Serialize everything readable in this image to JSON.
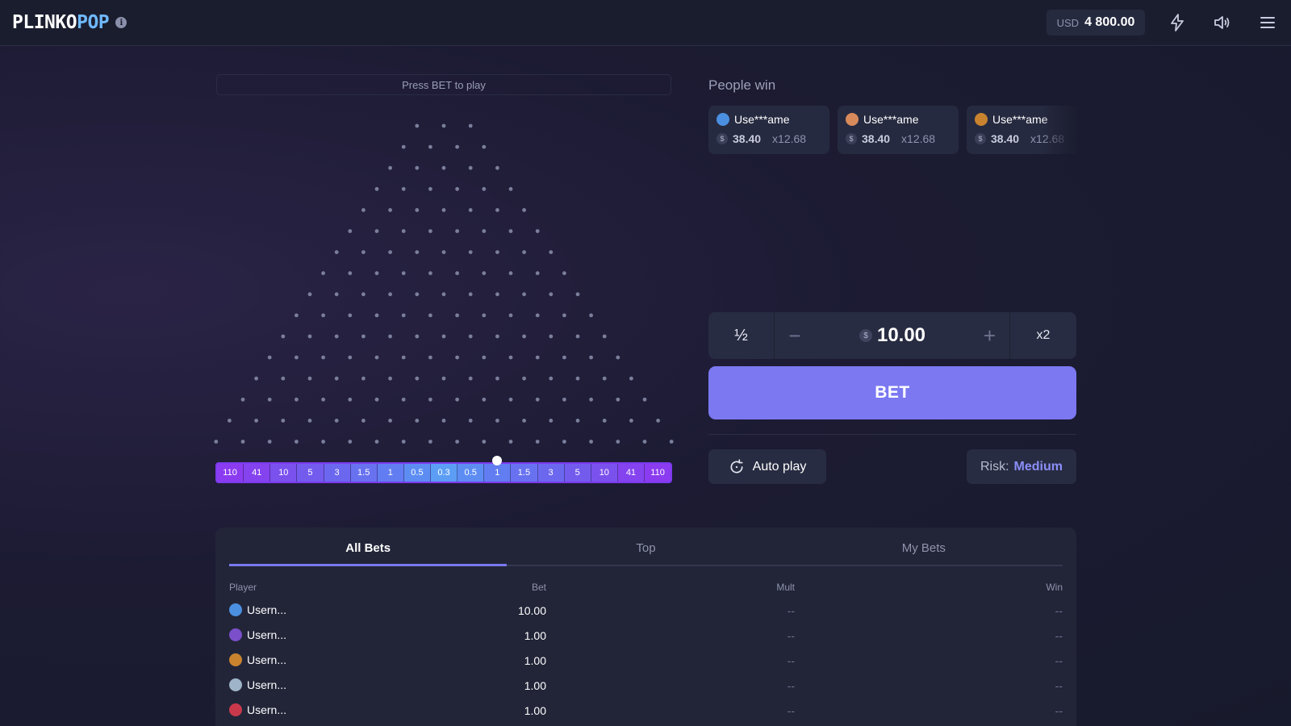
{
  "header": {
    "logo_part1": "PLINKO",
    "logo_part2": "POP",
    "currency": "USD",
    "balance": "4 800.00",
    "icons": [
      "info-icon",
      "lightning-icon",
      "sound-icon",
      "menu-icon"
    ]
  },
  "board": {
    "hint": "Press BET to play",
    "rows": 16,
    "multipliers": [
      "110",
      "41",
      "10",
      "5",
      "3",
      "1.5",
      "1",
      "0.5",
      "0.3",
      "0.5",
      "1",
      "1.5",
      "3",
      "5",
      "10",
      "41",
      "110"
    ],
    "slot_colors": [
      "#8b3cf0",
      "#8443ef",
      "#7b51ee",
      "#735bee",
      "#6c67ef",
      "#6872f0",
      "#617df1",
      "#5d8df3",
      "#5c9ef5",
      "#5d8df3",
      "#617df1",
      "#6872f0",
      "#6c67ef",
      "#735bee",
      "#7b51ee",
      "#8443ef",
      "#8b3cf0"
    ],
    "peg_color": "#7b7f9c"
  },
  "people_win": {
    "title": "People win",
    "cards": [
      {
        "user": "Use***ame",
        "amount": "38.40",
        "mult": "x12.68",
        "avatar_color": "#4b8fe0"
      },
      {
        "user": "Use***ame",
        "amount": "38.40",
        "mult": "x12.68",
        "avatar_color": "#d98a5b"
      },
      {
        "user": "Use***ame",
        "amount": "38.40",
        "mult": "x12.68",
        "avatar_color": "#c9832f"
      }
    ]
  },
  "bet_controls": {
    "half_label": "½",
    "minus_label": "−",
    "currency_symbol": "$",
    "amount": "10.00",
    "plus_label": "+",
    "double_label": "x2",
    "bet_label": "BET",
    "autoplay_label": "Auto play",
    "risk_label": "Risk:",
    "risk_value": "Medium",
    "accent": "#7b78f2"
  },
  "bets_table": {
    "tabs": [
      "All Bets",
      "Top",
      "My Bets"
    ],
    "active_tab": 0,
    "columns": {
      "player": "Player",
      "bet": "Bet",
      "mult": "Mult",
      "win": "Win"
    },
    "rows": [
      {
        "player": "Usern...",
        "bet": "10.00",
        "mult": "--",
        "win": "--",
        "avatar_color": "#4b8fe0"
      },
      {
        "player": "Usern...",
        "bet": "1.00",
        "mult": "--",
        "win": "--",
        "avatar_color": "#7a4fc9"
      },
      {
        "player": "Usern...",
        "bet": "1.00",
        "mult": "--",
        "win": "--",
        "avatar_color": "#c9832f"
      },
      {
        "player": "Usern...",
        "bet": "1.00",
        "mult": "--",
        "win": "--",
        "avatar_color": "#9fb4c8"
      },
      {
        "player": "Usern...",
        "bet": "1.00",
        "mult": "--",
        "win": "--",
        "avatar_color": "#c9394b"
      }
    ]
  }
}
